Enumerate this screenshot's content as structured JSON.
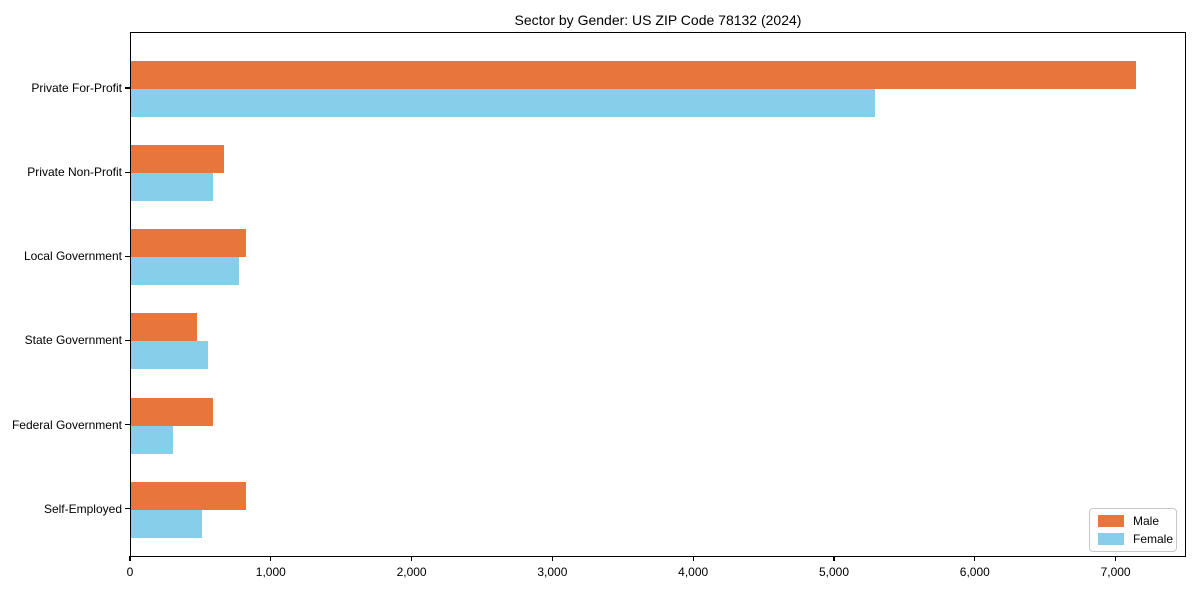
{
  "window": {
    "kind": "rendered-chart-figure",
    "background": "#ffffff"
  },
  "colors": {
    "male_bar": "#e8763c",
    "female_bar": "#87ceeb",
    "spine": "#000000",
    "text": "#000000",
    "legend_border": "#c8c8c8"
  },
  "chart_data": {
    "type": "bar",
    "orientation": "horizontal",
    "title": "Sector by Gender: US ZIP Code 78132 (2024)",
    "xlabel": "",
    "ylabel": "",
    "categories": [
      "Private For-Profit",
      "Private Non-Profit",
      "Local Government",
      "State Government",
      "Federal Government",
      "Self-Employed"
    ],
    "series": [
      {
        "name": "Male",
        "color": "#e8763c",
        "values": [
          7140,
          660,
          820,
          470,
          580,
          815
        ]
      },
      {
        "name": "Female",
        "color": "#87ceeb",
        "values": [
          5285,
          580,
          770,
          545,
          300,
          505
        ]
      }
    ],
    "xlim": [
      0,
      7500
    ],
    "x_ticks": [
      0,
      1000,
      2000,
      3000,
      4000,
      5000,
      6000,
      7000
    ],
    "x_tick_labels": [
      "0",
      "1,000",
      "2,000",
      "3,000",
      "4,000",
      "5,000",
      "6,000",
      "7,000"
    ],
    "grid": false,
    "legend": {
      "position": "lower right",
      "entries": [
        "Male",
        "Female"
      ]
    }
  }
}
